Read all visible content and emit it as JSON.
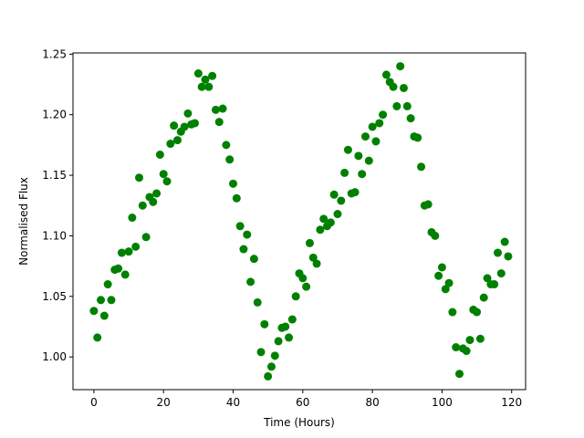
{
  "chart_data": {
    "type": "scatter",
    "xlabel": "Time (Hours)",
    "ylabel": "Normalised Flux",
    "xlim": [
      -6,
      124
    ],
    "ylim": [
      0.973,
      1.251
    ],
    "x_ticks": [
      0,
      20,
      40,
      60,
      80,
      100,
      120
    ],
    "y_ticks": [
      1.0,
      1.05,
      1.1,
      1.15,
      1.2,
      1.25
    ],
    "grid": false,
    "legend": "none",
    "marker_color": "#008000",
    "series": [
      {
        "points": [
          [
            0,
            1.038
          ],
          [
            1,
            1.016
          ],
          [
            2,
            1.047
          ],
          [
            3,
            1.034
          ],
          [
            4,
            1.06
          ],
          [
            5,
            1.047
          ],
          [
            6,
            1.072
          ],
          [
            7,
            1.073
          ],
          [
            8,
            1.086
          ],
          [
            9,
            1.068
          ],
          [
            10,
            1.087
          ],
          [
            11,
            1.115
          ],
          [
            12,
            1.091
          ],
          [
            13,
            1.148
          ],
          [
            14,
            1.125
          ],
          [
            15,
            1.099
          ],
          [
            16,
            1.132
          ],
          [
            17,
            1.128
          ],
          [
            18,
            1.135
          ],
          [
            19,
            1.167
          ],
          [
            20,
            1.151
          ],
          [
            21,
            1.145
          ],
          [
            22,
            1.176
          ],
          [
            23,
            1.191
          ],
          [
            24,
            1.179
          ],
          [
            25,
            1.186
          ],
          [
            26,
            1.19
          ],
          [
            27,
            1.201
          ],
          [
            28,
            1.192
          ],
          [
            29,
            1.193
          ],
          [
            30,
            1.234
          ],
          [
            31,
            1.223
          ],
          [
            32,
            1.229
          ],
          [
            33,
            1.223
          ],
          [
            34,
            1.232
          ],
          [
            35,
            1.204
          ],
          [
            36,
            1.194
          ],
          [
            37,
            1.205
          ],
          [
            38,
            1.175
          ],
          [
            39,
            1.163
          ],
          [
            40,
            1.143
          ],
          [
            41,
            1.131
          ],
          [
            42,
            1.108
          ],
          [
            43,
            1.089
          ],
          [
            44,
            1.101
          ],
          [
            45,
            1.062
          ],
          [
            46,
            1.081
          ],
          [
            47,
            1.045
          ],
          [
            48,
            1.004
          ],
          [
            49,
            1.027
          ],
          [
            50,
            0.984
          ],
          [
            51,
            0.992
          ],
          [
            52,
            1.001
          ],
          [
            53,
            1.013
          ],
          [
            54,
            1.024
          ],
          [
            55,
            1.025
          ],
          [
            56,
            1.016
          ],
          [
            57,
            1.031
          ],
          [
            58,
            1.05
          ],
          [
            59,
            1.069
          ],
          [
            60,
            1.065
          ],
          [
            61,
            1.058
          ],
          [
            62,
            1.094
          ],
          [
            63,
            1.082
          ],
          [
            64,
            1.077
          ],
          [
            65,
            1.105
          ],
          [
            66,
            1.114
          ],
          [
            67,
            1.108
          ],
          [
            68,
            1.111
          ],
          [
            69,
            1.134
          ],
          [
            70,
            1.118
          ],
          [
            71,
            1.129
          ],
          [
            72,
            1.152
          ],
          [
            73,
            1.171
          ],
          [
            74,
            1.135
          ],
          [
            75,
            1.136
          ],
          [
            76,
            1.166
          ],
          [
            77,
            1.151
          ],
          [
            78,
            1.182
          ],
          [
            79,
            1.162
          ],
          [
            80,
            1.19
          ],
          [
            81,
            1.178
          ],
          [
            82,
            1.193
          ],
          [
            83,
            1.2
          ],
          [
            84,
            1.233
          ],
          [
            85,
            1.227
          ],
          [
            86,
            1.223
          ],
          [
            87,
            1.207
          ],
          [
            88,
            1.24
          ],
          [
            89,
            1.222
          ],
          [
            90,
            1.207
          ],
          [
            91,
            1.197
          ],
          [
            92,
            1.182
          ],
          [
            93,
            1.181
          ],
          [
            94,
            1.157
          ],
          [
            95,
            1.125
          ],
          [
            96,
            1.126
          ],
          [
            97,
            1.103
          ],
          [
            98,
            1.1
          ],
          [
            99,
            1.067
          ],
          [
            100,
            1.074
          ],
          [
            101,
            1.056
          ],
          [
            102,
            1.061
          ],
          [
            103,
            1.037
          ],
          [
            104,
            1.008
          ],
          [
            105,
            0.986
          ],
          [
            106,
            1.007
          ],
          [
            107,
            1.005
          ],
          [
            108,
            1.014
          ],
          [
            109,
            1.039
          ],
          [
            110,
            1.037
          ],
          [
            111,
            1.015
          ],
          [
            112,
            1.049
          ],
          [
            113,
            1.065
          ],
          [
            114,
            1.06
          ],
          [
            115,
            1.06
          ],
          [
            116,
            1.086
          ],
          [
            117,
            1.069
          ],
          [
            118,
            1.095
          ],
          [
            119,
            1.083
          ]
        ]
      }
    ]
  }
}
